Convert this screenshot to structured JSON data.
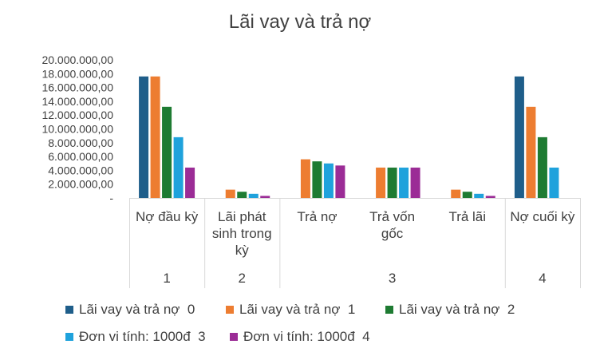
{
  "chart_data": {
    "type": "bar",
    "title": "Lãi vay và trả nợ",
    "categories": [
      "Nợ đầu kỳ",
      "Lãi phát sinh trong kỳ",
      "Trả nợ",
      "Trả vốn gốc",
      "Trả lãi",
      "Nợ cuối kỳ"
    ],
    "category_label_lines": [
      [
        "Nợ đầu kỳ"
      ],
      [
        "Lãi phát",
        "sinh trong",
        "kỳ"
      ],
      [
        "Trả nợ"
      ],
      [
        "Trả vốn",
        "gốc"
      ],
      [
        "Trả lãi"
      ],
      [
        "Nợ cuối kỳ"
      ]
    ],
    "groups": [
      {
        "label": "1",
        "categories": [
          0
        ]
      },
      {
        "label": "2",
        "categories": [
          1
        ]
      },
      {
        "label": "3",
        "categories": [
          2,
          3,
          4
        ]
      },
      {
        "label": "4",
        "categories": [
          5
        ]
      }
    ],
    "series": [
      {
        "name": "Lãi vay và trả nợ  0",
        "color": "#1F5E8A",
        "values": [
          17600000,
          null,
          null,
          null,
          null,
          17600000
        ]
      },
      {
        "name": "Lãi vay và trả nợ  1",
        "color": "#ED7D31",
        "values": [
          17600000,
          1200000,
          5600000,
          4400000,
          1200000,
          13200000
        ]
      },
      {
        "name": "Lãi vay và trả nợ  2",
        "color": "#1E7B32",
        "values": [
          13200000,
          900000,
          5300000,
          4400000,
          900000,
          8800000
        ]
      },
      {
        "name": "Đơn vi tính: 1000đ  3",
        "color": "#1FA2DC",
        "values": [
          8800000,
          600000,
          5000000,
          4400000,
          600000,
          4400000
        ]
      },
      {
        "name": "Đơn vi tính: 1000đ  4",
        "color": "#9B2C96",
        "values": [
          4400000,
          300000,
          4700000,
          4400000,
          300000,
          null
        ]
      }
    ],
    "ylim": [
      0,
      20000000
    ],
    "yticks": [
      0,
      2000000,
      4000000,
      6000000,
      8000000,
      10000000,
      12000000,
      14000000,
      16000000,
      18000000,
      20000000
    ],
    "ytick_labels": [
      "-",
      "2.000.000,00",
      "4.000.000,00",
      "6.000.000,00",
      "8.000.000,00",
      "10.000.000,00",
      "12.000.000,00",
      "14.000.000,00",
      "16.000.000,00",
      "18.000.000,00",
      "20.000.000,00"
    ],
    "grid": false,
    "legend_position": "bottom"
  }
}
